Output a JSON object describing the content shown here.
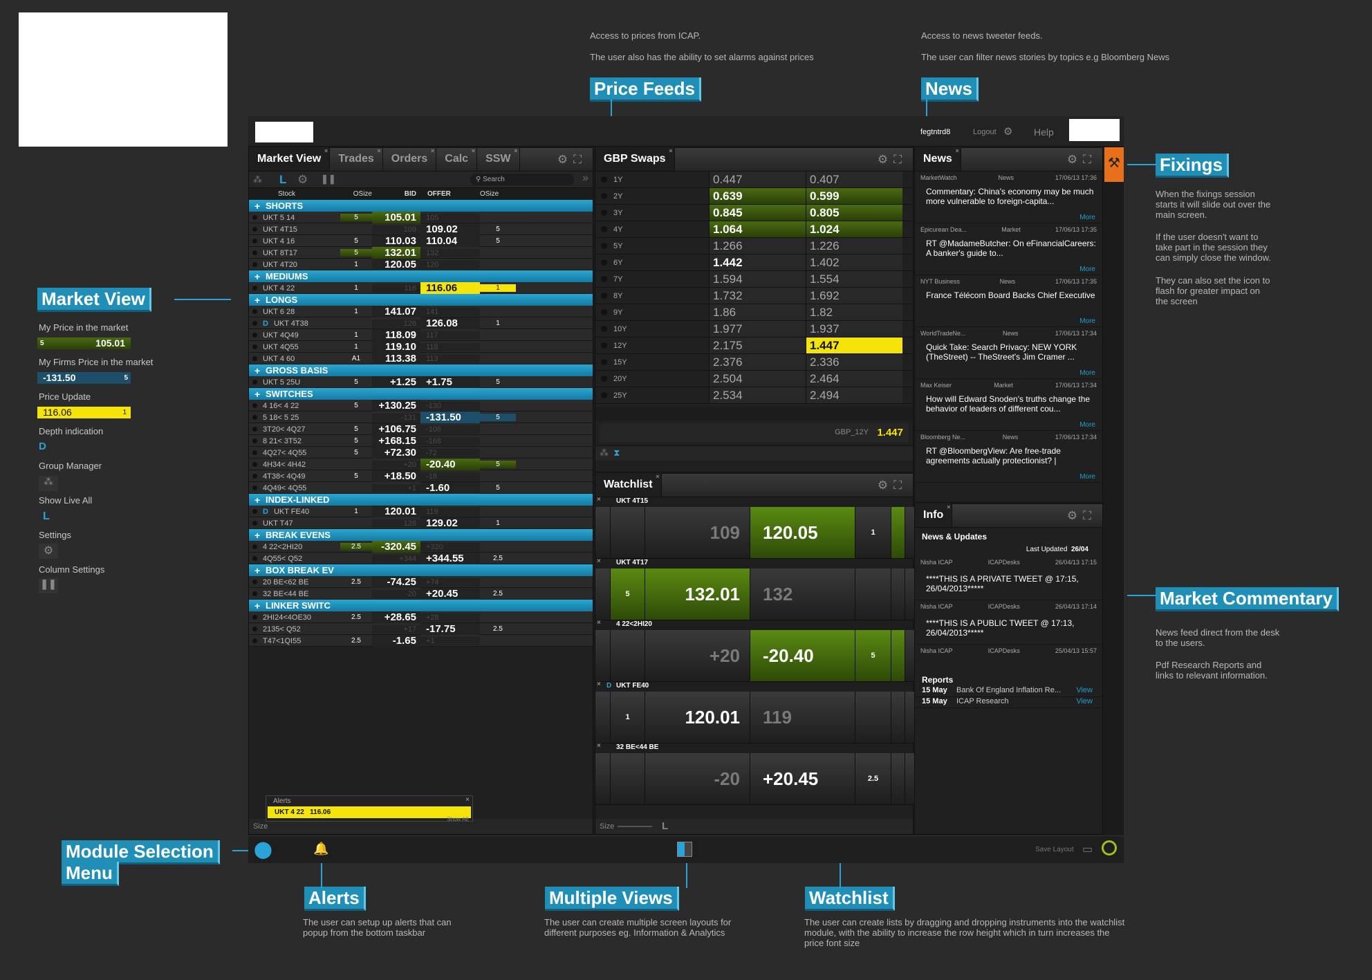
{
  "notes": {
    "price_feeds_1": "Access to prices from ICAP.",
    "price_feeds_2": "The user also has the ability to set alarms against prices",
    "news_1": "Access to news tweeter feeds.",
    "news_2": "The user can filter news stories by topics e.g Bloomberg News",
    "fixings_1": "When the fixings session starts it will slide out over the main screen.",
    "fixings_2": "If the user doesn't want to take part in the session they can simply close the window.",
    "fixings_3": "They can also set the icon to flash for greater impact on the screen",
    "commentary_1": "News feed direct from the desk to the users.",
    "commentary_2": "Pdf Research Reports and links to relevant information.",
    "alerts": "The user can setup up alerts that can popup from the bottom taskbar",
    "multiple_views": "The user can create multiple screen layouts for different purposes eg. Information & Analytics",
    "watchlist": "The user can create lists by dragging and dropping instruments into the watchlist module, with the ability to increase the row height which in turn increases the price font size"
  },
  "callouts": {
    "price_feeds": "Price Feeds",
    "news": "News",
    "fixings": "Fixings",
    "market_view": "Market View",
    "market_commentary": "Market Commentary",
    "module_selection_1": "Module Selection",
    "module_selection_2": "Menu",
    "alerts": "Alerts",
    "multiple_views": "Multiple Views",
    "watchlist": "Watchlist"
  },
  "legend": {
    "my_price": "My Price in the market",
    "my_price_size": "5",
    "my_price_val": "105.01",
    "firm_price": "My Firms Price in the market",
    "firm_price_val": "-131.50",
    "firm_price_size": "5",
    "price_update": "Price Update",
    "price_update_val": "116.06",
    "price_update_size": "1",
    "depth": "Depth indication",
    "depth_glyph": "D",
    "group_manager": "Group Manager",
    "show_live": "Show Live All",
    "show_live_glyph": "L",
    "settings": "Settings",
    "column_settings": "Column Settings"
  },
  "topbar": {
    "user": "fegtntrd8",
    "logout": "Logout",
    "help": "Help"
  },
  "market_view": {
    "tabs": [
      "Market View",
      "Trades",
      "Orders",
      "Calc",
      "SSW"
    ],
    "search_placeholder": "Search",
    "live_glyph": "L",
    "columns": [
      "Stock",
      "OSize",
      "BID",
      "OFFER",
      "OSize"
    ],
    "size_label": "Size"
  },
  "mv_rows": [
    {
      "g": "SHORTS"
    },
    {
      "s": "UKT 5 14",
      "o1": "5",
      "b": "105.01",
      "f": "105",
      "o2": "",
      "bh": "green",
      "fd": 1
    },
    {
      "s": "UKT 4T15",
      "o1": "",
      "b": "109",
      "f": "109.02",
      "o2": "5",
      "bd": 1
    },
    {
      "s": "UKT 4 16",
      "o1": "5",
      "b": "110.03",
      "f": "110.04",
      "o2": "5"
    },
    {
      "s": "UKT 8T17",
      "o1": "5",
      "b": "132.01",
      "f": "132",
      "o2": "",
      "bh": "green",
      "fd": 1
    },
    {
      "s": "UKT 4T20",
      "o1": "1",
      "b": "120.05",
      "f": "120",
      "o2": "",
      "fd": 1
    },
    {
      "g": "MEDIUMS"
    },
    {
      "s": "UKT 4 22",
      "o1": "1",
      "b": "116",
      "f": "116.06",
      "o2": "1",
      "bd": 1,
      "fh": "yellow"
    },
    {
      "g": "LONGS"
    },
    {
      "s": "UKT 6 28",
      "o1": "1",
      "b": "141.07",
      "f": "141",
      "o2": "",
      "fd": 1
    },
    {
      "s": "UKT 4T38",
      "d": "D",
      "o1": "",
      "b": "126",
      "f": "126.08",
      "o2": "1",
      "bd": 1
    },
    {
      "s": "UKT 4Q49",
      "o1": "1",
      "b": "118.09",
      "f": "117",
      "o2": "",
      "fd": 1
    },
    {
      "s": "UKT 4Q55",
      "o1": "1",
      "b": "119.10",
      "f": "118",
      "o2": "",
      "fd": 1
    },
    {
      "s": "UKT 4 60",
      "o1": "A1",
      "b": "113.38",
      "f": "113",
      "o2": "",
      "fd": 1
    },
    {
      "g": "GROSS BASIS"
    },
    {
      "s": "UKT 5 25U",
      "o1": "5",
      "b": "+1.25",
      "f": "+1.75",
      "o2": "5"
    },
    {
      "g": "SWITCHES"
    },
    {
      "s": "4 16< 4 22",
      "o1": "5",
      "b": "+130.25",
      "f": "-130",
      "o2": "",
      "fd": 1
    },
    {
      "s": "5 18< 5 25",
      "o1": "",
      "b": "-131",
      "f": "-131.50",
      "o2": "5",
      "bd": 1,
      "fh": "blue"
    },
    {
      "s": "3T20< 4Q27",
      "o1": "5",
      "b": "+106.75",
      "f": "-106",
      "o2": "",
      "fd": 1
    },
    {
      "s": "8 21< 3T52",
      "o1": "5",
      "b": "+168.15",
      "f": "-168",
      "o2": "",
      "fd": 1
    },
    {
      "s": "4Q27< 4Q55",
      "o1": "5",
      "b": "+72.30",
      "f": "-72",
      "o2": "",
      "fd": 1
    },
    {
      "s": "4H34< 4H42",
      "o1": "",
      "b": "+20",
      "f": "-20.40",
      "o2": "5",
      "bd": 1,
      "fh": "green"
    },
    {
      "s": "4T38< 4Q49",
      "o1": "5",
      "b": "+18.50",
      "f": "-18",
      "o2": "",
      "fd": 1
    },
    {
      "s": "4Q49< 4Q55",
      "o1": "",
      "b": "+1",
      "f": "-1.60",
      "o2": "5",
      "bd": 1
    },
    {
      "g": "INDEX-LINKED"
    },
    {
      "s": "UKT FE40",
      "d": "D",
      "o1": "1",
      "b": "120.01",
      "f": "119",
      "o2": "",
      "fd": 1
    },
    {
      "s": "UKT T47",
      "o1": "",
      "b": "128",
      "f": "129.02",
      "o2": "1",
      "bd": 1
    },
    {
      "g": "BREAK EVENS"
    },
    {
      "s": "4 22<2HI20",
      "o1": "2.5",
      "b": "-320.45",
      "f": "+320",
      "o2": "",
      "bh": "green",
      "fd": 1
    },
    {
      "s": "4Q55< Q52",
      "o1": "",
      "b": "+344",
      "f": "+344.55",
      "o2": "2.5",
      "bd": 1
    },
    {
      "g": "BOX BREAK EV"
    },
    {
      "s": "20 BE<62 BE",
      "o1": "2.5",
      "b": "-74.25",
      "f": "+74",
      "o2": "",
      "fd": 1
    },
    {
      "s": "32 BE<44 BE",
      "o1": "",
      "b": "-20",
      "f": "+20.45",
      "o2": "2.5",
      "bd": 1
    },
    {
      "g": "LINKER SWITC"
    },
    {
      "s": "2HI24<4OE30",
      "o1": "2.5",
      "b": "+28.65",
      "f": "+28",
      "o2": "",
      "fd": 1
    },
    {
      "s": "2135< Q52",
      "o1": "",
      "b": "+17",
      "f": "-17.75",
      "o2": "2.5",
      "bd": 1
    },
    {
      "s": "T47<1QI55",
      "o1": "2.5",
      "b": "-1.65",
      "f": "+1",
      "o2": "",
      "fd": 1
    }
  ],
  "alert_popup": {
    "title": "Alerts",
    "item": "UKT 4 22",
    "value": "116.06",
    "show_all": "Show All"
  },
  "gbp_swaps": {
    "tab": "GBP Swaps",
    "footer_label": "GBP_12Y",
    "footer_value": "1.447",
    "rows": [
      {
        "t": "1Y",
        "b": "0.447",
        "o": "0.407"
      },
      {
        "t": "2Y",
        "b": "0.639",
        "o": "0.599",
        "hb": "green",
        "ho": "green"
      },
      {
        "t": "3Y",
        "b": "0.845",
        "o": "0.805",
        "hb": "green",
        "ho": "green"
      },
      {
        "t": "4Y",
        "b": "1.064",
        "o": "1.024",
        "hb": "green",
        "ho": "green"
      },
      {
        "t": "5Y",
        "b": "1.266",
        "o": "1.226"
      },
      {
        "t": "6Y",
        "b": "1.442",
        "o": "1.402",
        "wb": 1
      },
      {
        "t": "7Y",
        "b": "1.594",
        "o": "1.554"
      },
      {
        "t": "8Y",
        "b": "1.732",
        "o": "1.692"
      },
      {
        "t": "9Y",
        "b": "1.86",
        "o": "1.82"
      },
      {
        "t": "10Y",
        "b": "1.977",
        "o": "1.937"
      },
      {
        "t": "12Y",
        "b": "2.175",
        "o": "1.447",
        "ho": "yellow"
      },
      {
        "t": "15Y",
        "b": "2.376",
        "o": "2.336"
      },
      {
        "t": "20Y",
        "b": "2.504",
        "o": "2.464"
      },
      {
        "t": "25Y",
        "b": "2.534",
        "o": "2.494"
      }
    ]
  },
  "watchlist": {
    "tab": "Watchlist",
    "size_label": "Size",
    "live_glyph": "L",
    "items": [
      {
        "name": "UKT 4T15",
        "ls": "",
        "b": "109",
        "f": "120.05",
        "rs": "1",
        "bd": 1,
        "fg": 1
      },
      {
        "name": "UKT 4T17",
        "ls": "5",
        "b": "132.01",
        "f": "132",
        "rs": "",
        "bg": 1,
        "lg": 1,
        "fd": 1
      },
      {
        "name": "4 22<2HI20",
        "ls": "",
        "b": "+20",
        "f": "-20.40",
        "rs": "5",
        "bd": 1,
        "fg": 1,
        "rg": 1
      },
      {
        "name": "UKT FE40",
        "d": "D",
        "ls": "1",
        "b": "120.01",
        "f": "119",
        "rs": "",
        "fd": 1
      },
      {
        "name": "32 BE<44 BE",
        "ls": "",
        "b": "-20",
        "f": "+20.45",
        "rs": "2.5",
        "bd": 1
      }
    ]
  },
  "news": {
    "tab": "News",
    "more": "More",
    "items": [
      {
        "src": "MarketWatch",
        "cat": "News",
        "time": "17/06/13 17:36",
        "title": "Commentary: China's economy may be much more vulnerable to foreign-capita..."
      },
      {
        "src": "Epicurean Dea...",
        "cat": "Market",
        "time": "17/06/13 17:35",
        "title": "RT @MadameButcher: On eFinancialCareers: A banker's guide to..."
      },
      {
        "src": "NYT Business",
        "cat": "News",
        "time": "17/06/13 17:35",
        "title": "France Télécom Board Backs Chief Executive"
      },
      {
        "src": "WorldTradeNe...",
        "cat": "News",
        "time": "17/06/13 17:34",
        "title": "Quick Take: Search Privacy: NEW YORK (TheStreet) -- TheStreet's Jim Cramer ..."
      },
      {
        "src": "Max Keiser",
        "cat": "Market",
        "time": "17/06/13 17:34",
        "title": "How will Edward Snoden's truths change the behavior of leaders of different cou..."
      },
      {
        "src": "Bloomberg Ne...",
        "cat": "News",
        "time": "17/06/13 17:34",
        "title": "RT @BloombergView: Are free-trade agreements actually protectionist? |"
      }
    ]
  },
  "info": {
    "tab": "Info",
    "section": "News & Updates",
    "last_updated_label": "Last Updated",
    "last_updated_val": "26/04",
    "items": [
      {
        "src": "Nisha ICAP",
        "cat": "ICAPDesks",
        "time": "26/04/13 17:15",
        "title": "****THIS IS A PRIVATE TWEET @ 17:15, 26/04/2013*****"
      },
      {
        "src": "Nisha ICAP",
        "cat": "ICAPDesks",
        "time": "26/04/13 17:14",
        "title": "****THIS IS A PUBLIC TWEET @ 17:13, 26/04/2013*****"
      },
      {
        "src": "Nisha ICAP",
        "cat": "ICAPDesks",
        "time": "25/04/13 15:57",
        "title": ""
      }
    ],
    "reports_title": "Reports",
    "reports": [
      {
        "date": "15 May",
        "title": "Bank Of England Inflation Re...",
        "link": "View"
      },
      {
        "date": "15 May",
        "title": "ICAP Research",
        "link": "View"
      }
    ]
  },
  "taskbar": {
    "save_layout": "Save Layout"
  }
}
